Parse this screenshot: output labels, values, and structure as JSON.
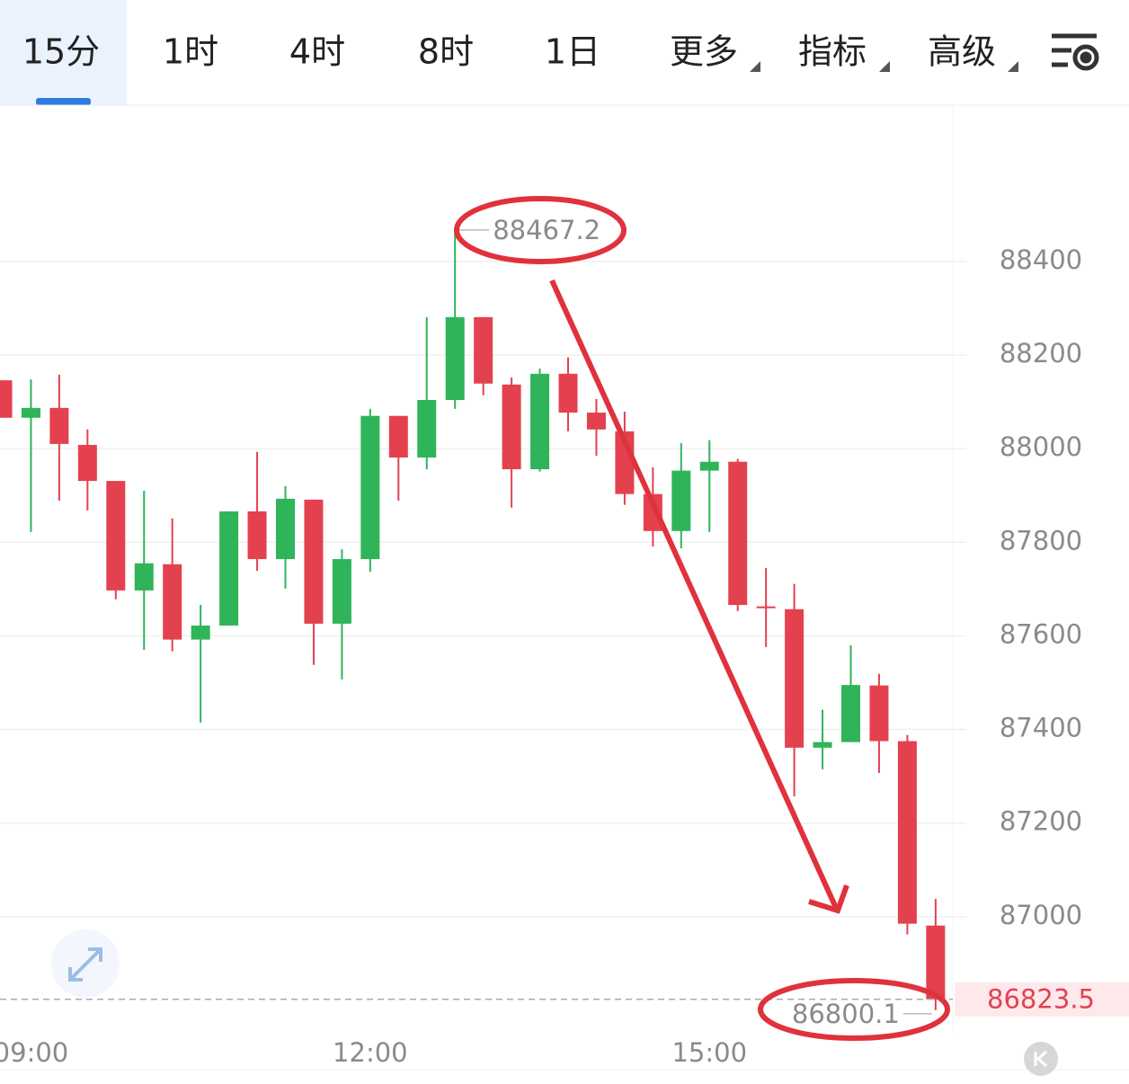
{
  "tabs": [
    "15分",
    "1时",
    "4时",
    "8时",
    "1日",
    "更多",
    "指标",
    "高级"
  ],
  "active_tab": 0,
  "chart_data": {
    "type": "candlestick",
    "categories": [
      null,
      "09:00",
      null,
      null,
      null,
      null,
      null,
      null,
      null,
      null,
      null,
      null,
      null,
      "12:00",
      null,
      null,
      null,
      null,
      null,
      null,
      null,
      null,
      null,
      null,
      null,
      "15:00",
      null,
      null,
      null,
      null,
      null,
      null,
      null,
      null
    ],
    "open": [
      88146,
      88066,
      88087,
      88008,
      87931,
      87697,
      87753,
      87592,
      87622,
      87866,
      87764,
      87891,
      87626,
      87764,
      88070,
      87981,
      88104,
      88281,
      88137,
      87956,
      88160,
      88077,
      88037,
      87903,
      87824,
      87953,
      87972,
      87663,
      87657,
      87361,
      87373,
      87494,
      87375,
      86981
    ],
    "high": [
      88146,
      88148,
      88158,
      88041,
      87931,
      87910,
      87851,
      87666,
      87866,
      87993,
      87920,
      87891,
      87785,
      88085,
      88070,
      88281,
      88467.2,
      88281,
      88152,
      88171,
      88195,
      88106,
      88079,
      87960,
      88012,
      88018,
      87978,
      87745,
      87711,
      87442,
      87580,
      87519,
      87388,
      87038
    ],
    "low": [
      88066,
      87822,
      87889,
      87868,
      87678,
      87570,
      87567,
      87415,
      87622,
      87739,
      87701,
      87538,
      87507,
      87737,
      87889,
      87956,
      88085,
      88114,
      87874,
      87951,
      88037,
      87985,
      87880,
      87791,
      87787,
      87822,
      87653,
      87576,
      87257,
      87315,
      87373,
      87307,
      86962,
      86800.1
    ],
    "close": [
      88066,
      88087,
      88010,
      87931,
      87697,
      87755,
      87592,
      87622,
      87866,
      87764,
      87893,
      87626,
      87764,
      88070,
      87981,
      88104,
      88281,
      88139,
      87956,
      88160,
      88077,
      88041,
      87903,
      87824,
      87953,
      87972,
      87666,
      87659,
      87361,
      87373,
      87495,
      87375,
      86985,
      86823.5
    ],
    "up_color": "#2fb45a",
    "down_color": "#e4414f",
    "ylim": [
      86750,
      88732
    ],
    "yticks": [
      87000,
      87200,
      87400,
      87600,
      87800,
      88000,
      88200,
      88400
    ],
    "grid": true
  }
}
